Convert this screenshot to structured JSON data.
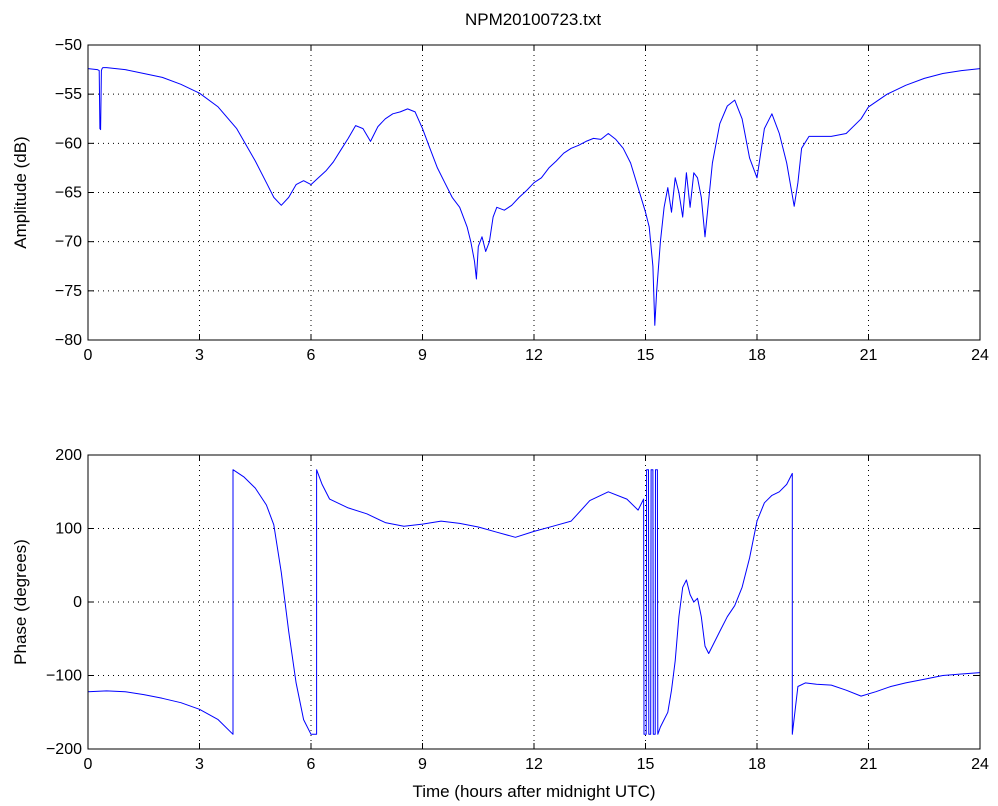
{
  "figure": {
    "title": "NPM20100723.txt",
    "line_color": "#0000ff",
    "grid_color": "#000000"
  },
  "chart_data": [
    {
      "type": "line",
      "title": "NPM20100723.txt",
      "xlabel": "",
      "ylabel": "Amplitude (dB)",
      "xlim": [
        0,
        24
      ],
      "ylim": [
        -80,
        -50
      ],
      "xticks": [
        0,
        3,
        6,
        9,
        12,
        15,
        18,
        21,
        24
      ],
      "yticks": [
        -80,
        -75,
        -70,
        -65,
        -60,
        -55,
        -50
      ],
      "grid": true,
      "series": [
        {
          "name": "",
          "color": "#0000ff",
          "x": [
            0,
            0.25,
            0.3,
            0.32,
            0.34,
            0.36,
            0.38,
            0.4,
            0.45,
            0.5,
            1.0,
            1.5,
            2.0,
            2.5,
            3.0,
            3.5,
            4.0,
            4.5,
            4.8,
            5.0,
            5.2,
            5.4,
            5.6,
            5.8,
            6.0,
            6.2,
            6.4,
            6.6,
            6.8,
            7.0,
            7.2,
            7.4,
            7.6,
            7.8,
            8.0,
            8.2,
            8.4,
            8.6,
            8.8,
            9.0,
            9.2,
            9.4,
            9.6,
            9.8,
            10.0,
            10.2,
            10.3,
            10.4,
            10.45,
            10.5,
            10.6,
            10.7,
            10.8,
            10.9,
            11.0,
            11.2,
            11.4,
            11.6,
            11.8,
            12.0,
            12.2,
            12.4,
            12.6,
            12.8,
            13.0,
            13.2,
            13.4,
            13.6,
            13.8,
            14.0,
            14.2,
            14.4,
            14.6,
            14.8,
            15.0,
            15.1,
            15.2,
            15.25,
            15.3,
            15.4,
            15.5,
            15.6,
            15.7,
            15.8,
            15.9,
            16.0,
            16.1,
            16.2,
            16.3,
            16.4,
            16.5,
            16.6,
            16.8,
            17.0,
            17.2,
            17.4,
            17.6,
            17.8,
            18.0,
            18.2,
            18.4,
            18.6,
            18.8,
            19.0,
            19.1,
            19.2,
            19.4,
            19.6,
            20.0,
            20.4,
            20.8,
            21.0,
            21.5,
            22.0,
            22.5,
            23.0,
            23.5,
            24.0
          ],
          "y": [
            -52.4,
            -52.5,
            -52.6,
            -58.5,
            -58.6,
            -52.6,
            -52.4,
            -52.3,
            -52.3,
            -52.3,
            -52.5,
            -52.9,
            -53.3,
            -54.0,
            -54.9,
            -56.3,
            -58.5,
            -61.8,
            -64.0,
            -65.5,
            -66.3,
            -65.5,
            -64.2,
            -63.8,
            -64.2,
            -63.5,
            -62.8,
            -61.9,
            -60.7,
            -59.5,
            -58.2,
            -58.5,
            -59.8,
            -58.3,
            -57.5,
            -57.0,
            -56.8,
            -56.5,
            -56.8,
            -58.5,
            -60.5,
            -62.5,
            -64.0,
            -65.5,
            -66.5,
            -68.5,
            -70.0,
            -72.0,
            -73.8,
            -70.5,
            -69.5,
            -71.0,
            -70.0,
            -67.5,
            -66.5,
            -66.8,
            -66.3,
            -65.5,
            -64.8,
            -64.0,
            -63.5,
            -62.5,
            -61.8,
            -61.0,
            -60.5,
            -60.2,
            -59.8,
            -59.5,
            -59.6,
            -59.0,
            -59.6,
            -60.5,
            -62.0,
            -64.5,
            -67.0,
            -68.5,
            -72.5,
            -78.5,
            -75.0,
            -70.0,
            -66.5,
            -64.5,
            -67.0,
            -63.5,
            -65.0,
            -67.5,
            -63.0,
            -66.5,
            -63.0,
            -63.5,
            -65.5,
            -69.5,
            -62.0,
            -58.0,
            -56.2,
            -55.6,
            -57.5,
            -61.5,
            -63.5,
            -58.5,
            -57.0,
            -59.0,
            -62.0,
            -66.4,
            -64.0,
            -60.5,
            -59.3,
            -59.3,
            -59.3,
            -59.0,
            -57.5,
            -56.3,
            -55.0,
            -54.1,
            -53.4,
            -52.9,
            -52.6,
            -52.4
          ]
        }
      ]
    },
    {
      "type": "line",
      "title": "",
      "xlabel": "Time (hours after midnight UTC)",
      "ylabel": "Phase (degrees)",
      "xlim": [
        0,
        24
      ],
      "ylim": [
        -200,
        200
      ],
      "xticks": [
        0,
        3,
        6,
        9,
        12,
        15,
        18,
        21,
        24
      ],
      "yticks": [
        -200,
        -100,
        0,
        100,
        200
      ],
      "grid": true,
      "series": [
        {
          "name": "",
          "color": "#0000ff",
          "x": [
            0,
            0.5,
            1.0,
            1.5,
            2.0,
            2.5,
            3.0,
            3.5,
            3.9,
            3.9,
            4.2,
            4.5,
            4.8,
            5.0,
            5.2,
            5.4,
            5.6,
            5.8,
            6.0,
            6.15,
            6.15,
            6.3,
            6.5,
            7.0,
            7.5,
            8.0,
            8.5,
            9.0,
            9.5,
            10.0,
            10.5,
            11.0,
            11.5,
            12.0,
            12.5,
            13.0,
            13.5,
            14.0,
            14.5,
            14.8,
            14.95,
            14.96,
            15.02,
            15.03,
            15.08,
            15.09,
            15.14,
            15.15,
            15.2,
            15.21,
            15.26,
            15.27,
            15.32,
            15.33,
            15.4,
            15.5,
            15.6,
            15.7,
            15.8,
            15.9,
            16.0,
            16.1,
            16.2,
            16.3,
            16.4,
            16.5,
            16.6,
            16.7,
            16.8,
            17.0,
            17.2,
            17.4,
            17.6,
            17.8,
            18.0,
            18.2,
            18.4,
            18.6,
            18.8,
            18.95,
            18.95,
            19.1,
            19.3,
            19.6,
            20.0,
            20.4,
            20.8,
            21.2,
            21.6,
            22.0,
            22.5,
            23.0,
            23.5,
            24.0
          ],
          "y": [
            -122,
            -121,
            -122,
            -126,
            -131,
            -137,
            -146,
            -160,
            -180,
            180,
            170,
            155,
            132,
            105,
            40,
            -40,
            -110,
            -160,
            -180,
            -180,
            180,
            160,
            140,
            128,
            120,
            108,
            103,
            106,
            110,
            107,
            102,
            95,
            88,
            96,
            103,
            110,
            138,
            150,
            140,
            125,
            140,
            -180,
            -180,
            180,
            180,
            -180,
            -180,
            180,
            180,
            -180,
            -180,
            180,
            180,
            -180,
            -170,
            -160,
            -150,
            -120,
            -80,
            -20,
            20,
            30,
            10,
            0,
            5,
            -20,
            -60,
            -70,
            -60,
            -40,
            -20,
            -5,
            20,
            60,
            110,
            135,
            145,
            150,
            160,
            175,
            -180,
            -115,
            -110,
            -112,
            -113,
            -120,
            -128,
            -122,
            -115,
            -110,
            -105,
            -100,
            -98,
            -96
          ]
        }
      ]
    }
  ]
}
